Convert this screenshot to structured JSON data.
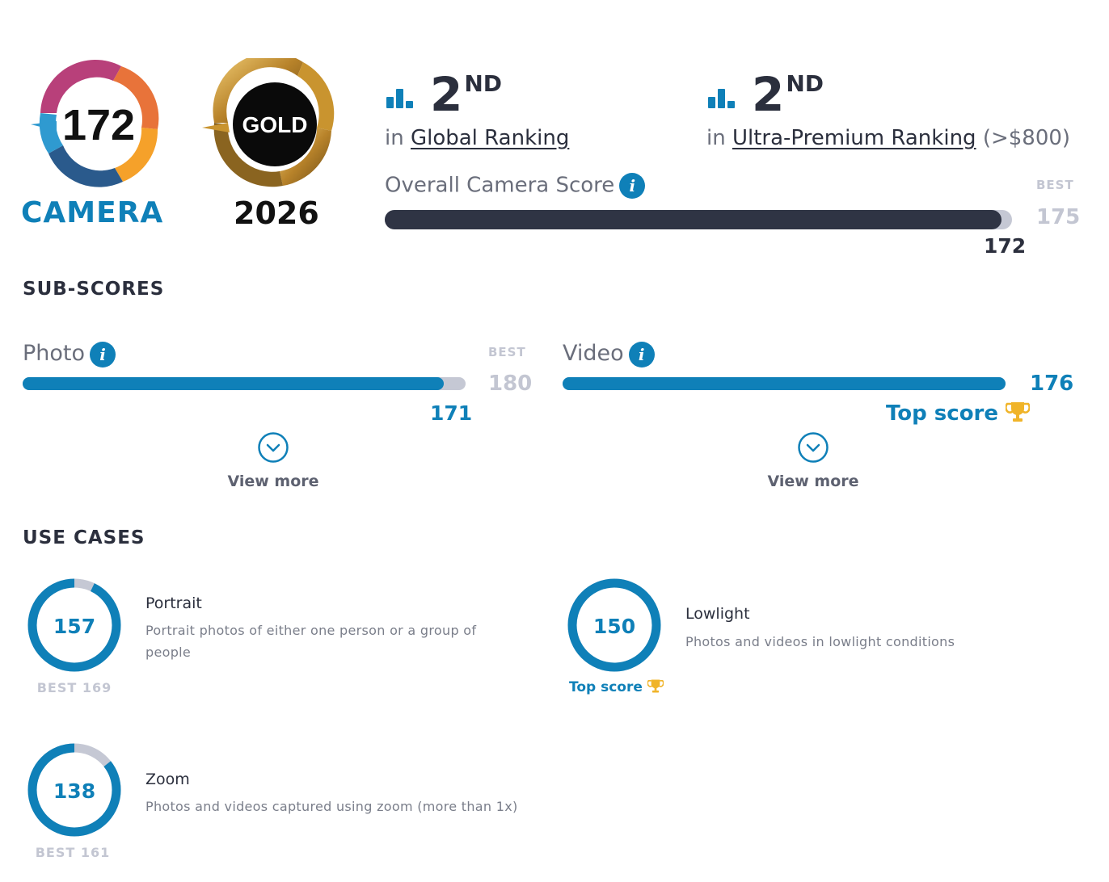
{
  "badges": {
    "camera_score": "172",
    "camera_label": "CAMERA",
    "gold_label": "GOLD",
    "year": "2026"
  },
  "rankings": [
    {
      "rank": "2",
      "suffix": "ND",
      "prefix": "in",
      "link": "Global Ranking",
      "extra": ""
    },
    {
      "rank": "2",
      "suffix": "ND",
      "prefix": "in",
      "link": "Ultra-Premium Ranking",
      "extra": "(>$800)"
    }
  ],
  "overall": {
    "label": "Overall Camera Score",
    "best_label": "BEST",
    "best": "175",
    "score": "172",
    "fraction": 0.983
  },
  "subscores": {
    "title": "SUB-SCORES",
    "photo": {
      "label": "Photo",
      "best_label": "BEST",
      "best": "180",
      "score": "171",
      "fraction": 0.95,
      "view_more": "View more"
    },
    "video": {
      "label": "Video",
      "best": "176",
      "top_score": "Top score",
      "fraction": 1.0,
      "view_more": "View more"
    }
  },
  "use_cases": {
    "title": "USE CASES",
    "items": [
      {
        "name": "Portrait",
        "score": "157",
        "desc_line1": "Portrait photos of either one person or a group of",
        "desc_line2": "people",
        "best": "BEST 169",
        "fraction": 0.929
      },
      {
        "name": "Lowlight",
        "score": "150",
        "desc_line1": "Photos and videos in lowlight conditions",
        "top_score": "Top score",
        "fraction": 1.0
      },
      {
        "name": "Zoom",
        "score": "138",
        "desc_line1": "Photos and videos captured using zoom (more than 1x)",
        "best": "BEST 161",
        "fraction": 0.857
      }
    ]
  },
  "colors": {
    "accent_blue": "#0f80b8",
    "dark_bar": "#2f3444",
    "track_grey": "#c5c8d4",
    "trophy_gold": "#f0b429"
  }
}
